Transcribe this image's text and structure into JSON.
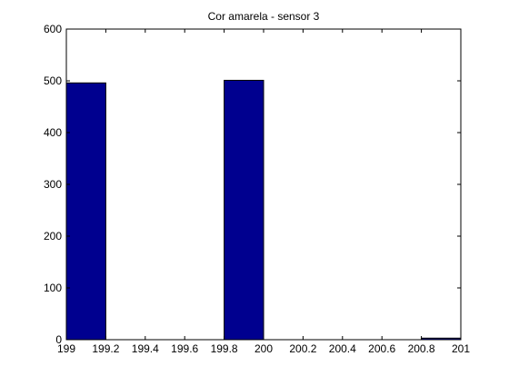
{
  "chart_data": {
    "type": "bar",
    "title": "Cor amarela - sensor 3",
    "xlabel": "",
    "ylabel": "",
    "xlim": [
      199,
      201
    ],
    "ylim": [
      0,
      600
    ],
    "xticks": [
      "199",
      "199.2",
      "199.4",
      "199.6",
      "199.8",
      "200",
      "200.2",
      "200.4",
      "200.6",
      "200.8",
      "201"
    ],
    "yticks": [
      "0",
      "100",
      "200",
      "300",
      "400",
      "500",
      "600"
    ],
    "bins": [
      {
        "x_start": 199.0,
        "x_end": 199.2,
        "value": 496
      },
      {
        "x_start": 199.8,
        "x_end": 200.0,
        "value": 501
      },
      {
        "x_start": 200.8,
        "x_end": 201.0,
        "value": 3
      }
    ],
    "grid": false,
    "legend": "none",
    "colors": {
      "bar_fill": "#00008f",
      "bar_edge": "#000000",
      "axes": "#000000",
      "background": "#ffffff"
    }
  }
}
